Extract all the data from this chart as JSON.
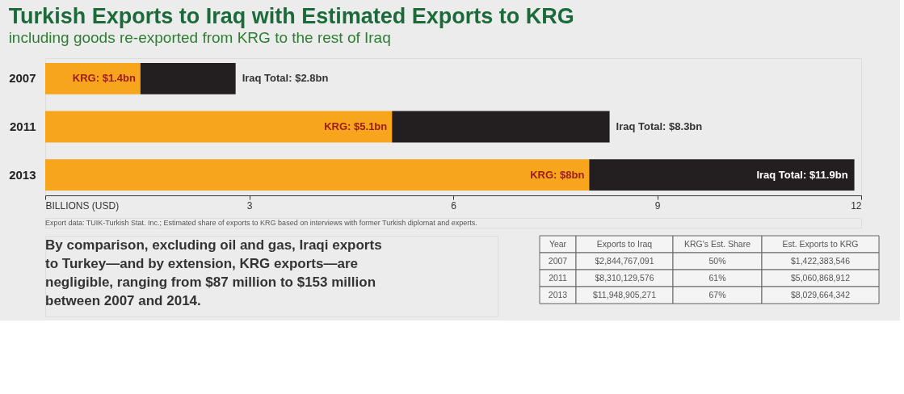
{
  "chart_data": {
    "type": "bar",
    "orientation": "horizontal",
    "stacked": true,
    "title": "Turkish Exports to Iraq with Estimated Exports to KRG",
    "subtitle": "including goods re-exported from KRG to the rest of Iraq",
    "categories": [
      "2007",
      "2011",
      "2013"
    ],
    "series": [
      {
        "color": "#f7a51c",
        "values": [
          1.4,
          5.1,
          8
        ],
        "value_labels": [
          "KRG: $1.4bn",
          "KRG: $5.1bn",
          "KRG: $8bn"
        ]
      },
      {
        "color": "#231f20",
        "values": [
          1.4,
          3.2,
          3.9
        ]
      }
    ],
    "xlim": [
      0,
      12
    ],
    "xticks": [
      {
        "value": 0,
        "label": "BILLIONS (USD)"
      },
      3,
      6,
      9,
      12
    ],
    "grid": false,
    "annotations": [
      {
        "text": "Iraq Total: $2.8bn",
        "x": 2.8,
        "y": "2007"
      },
      {
        "text": "Iraq Total: $8.3bn",
        "x": 8.3,
        "y": "2011"
      },
      {
        "text": "Iraq Total: $11.9bn",
        "x": 11.9,
        "y": "2013"
      },
      "Export data: TUIK-Turkish Stat. Inc.; Estimated share of exports to KRG based on interviews with former Turkish diplomat and experts.",
      "By comparison, excluding oil and gas, Iraqi exports to Turkey—and by extension, KRG exports—are negligible, ranging from $87 million to $153 million between 2007 and 2014.",
      "Year",
      "Exports to Iraq",
      "KRG's Est. Share",
      "Est. Exports to KRG",
      "2007",
      "$2,844,767,091",
      "50%",
      "$1,422,383,546",
      "2011",
      "$8,310,129,576",
      "61%",
      "$5,060,868,912",
      "2013",
      "$11,948,905,271",
      "67%",
      "$8,029,664,342"
    ]
  }
}
